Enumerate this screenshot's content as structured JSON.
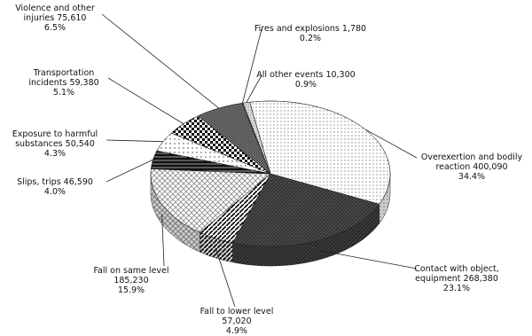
{
  "chart_data": {
    "type": "pie",
    "categories": [
      "Overexertion and bodily reaction",
      "Contact with object, equipment",
      "Fall to lower level",
      "Fall on same level",
      "Slips, trips",
      "Exposure to harmful substances",
      "Transportation incidents",
      "Violence and other injuries",
      "Fires and explosions",
      "All other events"
    ],
    "values": [
      400090,
      268380,
      57020,
      185230,
      46590,
      50540,
      59380,
      75610,
      1780,
      10300
    ],
    "value_labels": [
      "400,090",
      "268,380",
      "57,020",
      "185,230",
      "46,590",
      "50,540",
      "59,380",
      "75,610",
      "1,780",
      "10,300"
    ],
    "percentages": [
      34.4,
      23.1,
      4.9,
      15.9,
      4.0,
      4.3,
      5.1,
      6.5,
      0.2,
      0.9
    ],
    "percentage_labels": [
      "34.4%",
      "23.1%",
      "4.9%",
      "15.9%",
      "4.0%",
      "4.3%",
      "5.1%",
      "6.5%",
      "0.2%",
      "0.9%"
    ],
    "colors": [
      "#ffffff",
      "#333333",
      "#ffffff",
      "#ffffff",
      "#111111",
      "#ffffff",
      "#ffffff",
      "#777777",
      "#999999",
      "#dddddd"
    ]
  }
}
